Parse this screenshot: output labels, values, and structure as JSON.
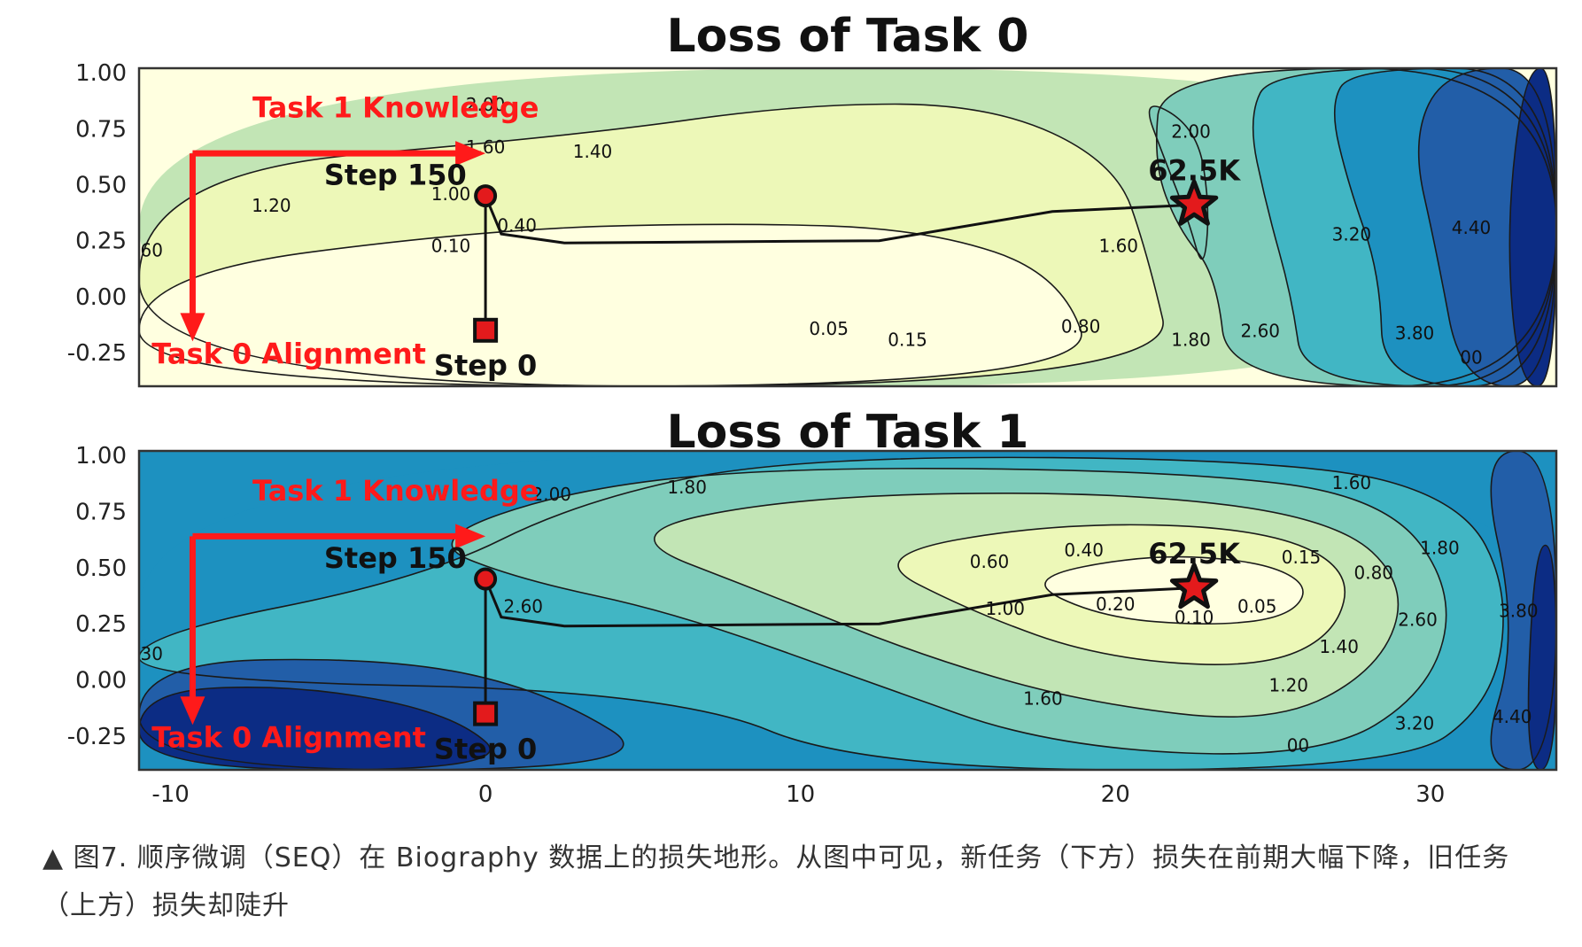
{
  "chart_data": [
    {
      "type": "contour",
      "title": "Loss of Task 0",
      "x_ticks": [
        "-10",
        "0",
        "10",
        "20",
        "30"
      ],
      "y_ticks": [
        "1.00",
        "0.75",
        "0.50",
        "0.25",
        "0.00",
        "-0.25"
      ],
      "xlim": [
        -11,
        34
      ],
      "ylim": [
        -0.4,
        1.02
      ],
      "colormap": [
        "#ffffe0",
        "#edf8b8",
        "#c2e5b5",
        "#7fcdbb",
        "#41b6c4",
        "#1d91c0",
        "#225ea8",
        "#0c2c84"
      ],
      "contour_labels": [
        {
          "text": "2.00",
          "x": 0,
          "y": 0.83
        },
        {
          "text": "1.60",
          "x": 0,
          "y": 0.64
        },
        {
          "text": "1.40",
          "x": 3.4,
          "y": 0.62
        },
        {
          "text": "1.20",
          "x": -6.8,
          "y": 0.38
        },
        {
          "text": "1.00",
          "x": -1.1,
          "y": 0.43
        },
        {
          "text": "0.40",
          "x": 1,
          "y": 0.29
        },
        {
          "text": "0.10",
          "x": -1.1,
          "y": 0.2
        },
        {
          "text": "60",
          "x": -10.6,
          "y": 0.18
        },
        {
          "text": "0.05",
          "x": 10.9,
          "y": -0.17
        },
        {
          "text": "0.15",
          "x": 13.4,
          "y": -0.22
        },
        {
          "text": "0.80",
          "x": 18.9,
          "y": -0.16
        },
        {
          "text": "1.60",
          "x": 20.1,
          "y": 0.2
        },
        {
          "text": "2.00",
          "x": 22.4,
          "y": 0.71
        },
        {
          "text": "1.80",
          "x": 22.4,
          "y": -0.22
        },
        {
          "text": "2.60",
          "x": 24.6,
          "y": -0.18
        },
        {
          "text": "3.20",
          "x": 27.5,
          "y": 0.25
        },
        {
          "text": "3.80",
          "x": 29.5,
          "y": -0.19
        },
        {
          "text": "4.40",
          "x": 31.3,
          "y": 0.28
        },
        {
          "text": "00",
          "x": 31.3,
          "y": -0.3
        }
      ],
      "trajectory": {
        "x": [
          0,
          0,
          0.5,
          2.5,
          12.5,
          18,
          22.5
        ],
        "y": [
          -0.15,
          0.45,
          0.28,
          0.24,
          0.25,
          0.38,
          0.41
        ]
      },
      "markers": {
        "step0": {
          "x": 0,
          "y": -0.15
        },
        "step150": {
          "x": 0,
          "y": 0.45
        },
        "star": {
          "x": 22.5,
          "y": 0.41
        }
      },
      "annotations": {
        "knowledge": "Task 1 Knowledge",
        "alignment": "Task 0 Alignment",
        "step150": "Step 150",
        "step0": "Step 0",
        "star": "62.5K"
      }
    },
    {
      "type": "contour",
      "title": "Loss of Task 1",
      "x_ticks": [
        "-10",
        "0",
        "10",
        "20",
        "30"
      ],
      "y_ticks": [
        "1.00",
        "0.75",
        "0.50",
        "0.25",
        "0.00",
        "-0.25"
      ],
      "xlim": [
        -11,
        34
      ],
      "ylim": [
        -0.4,
        1.02
      ],
      "colormap": [
        "#ffffe0",
        "#edf8b8",
        "#c2e5b5",
        "#7fcdbb",
        "#41b6c4",
        "#1d91c0",
        "#225ea8",
        "#0c2c84"
      ],
      "contour_labels": [
        {
          "text": "2.00",
          "x": 2.1,
          "y": 0.8
        },
        {
          "text": "1.80",
          "x": 6.4,
          "y": 0.83
        },
        {
          "text": "1.60",
          "x": 27.5,
          "y": 0.85
        },
        {
          "text": "2.60",
          "x": 1.2,
          "y": 0.3
        },
        {
          "text": "30",
          "x": -10.6,
          "y": 0.09
        },
        {
          "text": "0.60",
          "x": 16,
          "y": 0.5
        },
        {
          "text": "0.40",
          "x": 19,
          "y": 0.55
        },
        {
          "text": "0.15",
          "x": 25.9,
          "y": 0.52
        },
        {
          "text": "0.80",
          "x": 28.2,
          "y": 0.45
        },
        {
          "text": "1.80",
          "x": 30.3,
          "y": 0.56
        },
        {
          "text": "0.20",
          "x": 20,
          "y": 0.31
        },
        {
          "text": "0.10",
          "x": 22.5,
          "y": 0.25
        },
        {
          "text": "0.05",
          "x": 24.5,
          "y": 0.3
        },
        {
          "text": "1.00",
          "x": 16.5,
          "y": 0.29
        },
        {
          "text": "1.60",
          "x": 17.7,
          "y": -0.11
        },
        {
          "text": "1.20",
          "x": 25.5,
          "y": -0.05
        },
        {
          "text": "1.40",
          "x": 27.1,
          "y": 0.12
        },
        {
          "text": "2.60",
          "x": 29.6,
          "y": 0.24
        },
        {
          "text": "3.80",
          "x": 32.8,
          "y": 0.28
        },
        {
          "text": "3.20",
          "x": 29.5,
          "y": -0.22
        },
        {
          "text": "4.40",
          "x": 32.6,
          "y": -0.19
        },
        {
          "text": "00",
          "x": 25.8,
          "y": -0.32
        }
      ],
      "trajectory": {
        "x": [
          0,
          0,
          0.5,
          2.5,
          12.5,
          18,
          22.5
        ],
        "y": [
          -0.15,
          0.45,
          0.28,
          0.24,
          0.25,
          0.38,
          0.41
        ]
      },
      "markers": {
        "step0": {
          "x": 0,
          "y": -0.15
        },
        "step150": {
          "x": 0,
          "y": 0.45
        },
        "star": {
          "x": 22.5,
          "y": 0.41
        }
      },
      "annotations": {
        "knowledge": "Task 1 Knowledge",
        "alignment": "Task 0 Alignment",
        "step150": "Step 150",
        "step0": "Step 0",
        "star": "62.5K"
      }
    }
  ],
  "caption": "▲ 图7. 顺序微调（SEQ）在 Biography 数据上的损失地形。从图中可见，新任务（下方）损失在前期大幅下降，旧任务（上方）损失却陡升"
}
